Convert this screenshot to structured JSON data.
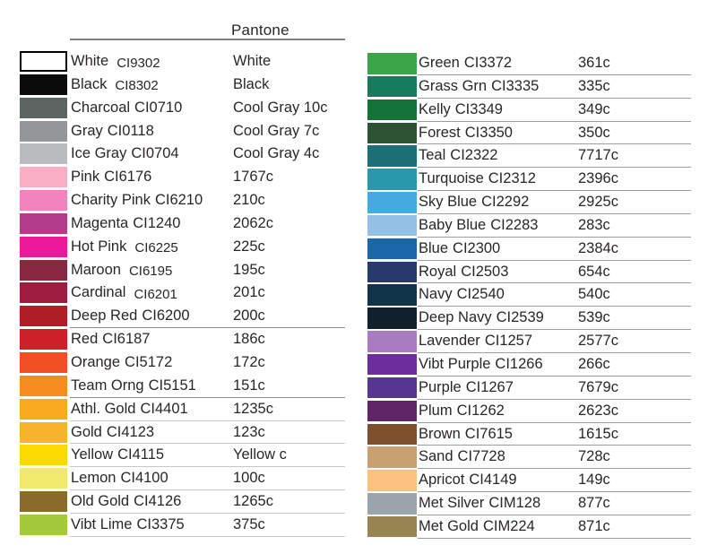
{
  "header": {
    "pantone_label": "Pantone"
  },
  "chart_data": {
    "type": "table",
    "title": "Pantone",
    "columns": [
      "swatch_color",
      "color_name",
      "ink_code",
      "pantone_value"
    ],
    "left_rows": [
      {
        "name": "White",
        "code": "CI9302",
        "pantone": "White",
        "color": "#ffffff",
        "swatch_border": true,
        "offset_code": true,
        "underline": null
      },
      {
        "name": "Black",
        "code": "CI8302",
        "pantone": "Black",
        "color": "#0b0b0b",
        "swatch_border": false,
        "offset_code": true,
        "underline": null
      },
      {
        "name": "Charcoal",
        "code": "CI0710",
        "pantone": "Cool Gray 10c",
        "color": "#5e6461",
        "swatch_border": false,
        "offset_code": false,
        "underline": null
      },
      {
        "name": "Gray",
        "code": "CI0118",
        "pantone": "Cool Gray 7c",
        "color": "#949698",
        "swatch_border": false,
        "offset_code": false,
        "underline": null
      },
      {
        "name": "Ice Gray",
        "code": "CI0704",
        "pantone": "Cool Gray 4c",
        "color": "#b9bbbd",
        "swatch_border": false,
        "offset_code": false,
        "underline": null
      },
      {
        "name": "Pink",
        "code": "CI6176",
        "pantone": "1767c",
        "color": "#f9aec6",
        "swatch_border": false,
        "offset_code": false,
        "underline": null
      },
      {
        "name": "Charity Pink",
        "code": "CI6210",
        "pantone": "210c",
        "color": "#f283bd",
        "swatch_border": false,
        "offset_code": false,
        "underline": null
      },
      {
        "name": "Magenta",
        "code": "CI1240",
        "pantone": "2062c",
        "color": "#b43c8d",
        "swatch_border": false,
        "offset_code": false,
        "underline": null
      },
      {
        "name": "Hot Pink",
        "code": "CI6225",
        "pantone": "225c",
        "color": "#ec1a9b",
        "swatch_border": false,
        "offset_code": true,
        "underline": null
      },
      {
        "name": "Maroon",
        "code": "CI6195",
        "pantone": "195c",
        "color": "#88293f",
        "swatch_border": false,
        "offset_code": true,
        "underline": null
      },
      {
        "name": "Cardinal",
        "code": "CI6201",
        "pantone": "201c",
        "color": "#9d1d3e",
        "swatch_border": false,
        "offset_code": true,
        "underline": null
      },
      {
        "name": "Deep Red",
        "code": "CI6200",
        "pantone": "200c",
        "color": "#b01f26",
        "swatch_border": false,
        "offset_code": false,
        "underline": "dark"
      },
      {
        "name": "Red",
        "code": "CI6187",
        "pantone": "186c",
        "color": "#cd2028",
        "swatch_border": false,
        "offset_code": false,
        "underline": null
      },
      {
        "name": "Orange",
        "code": "CI5172",
        "pantone": "172c",
        "color": "#f04e23",
        "swatch_border": false,
        "offset_code": false,
        "underline": null
      },
      {
        "name": "Team Orng",
        "code": "CI5151",
        "pantone": "151c",
        "color": "#f68b1f",
        "swatch_border": false,
        "offset_code": false,
        "underline": "dark"
      },
      {
        "name": "Athl. Gold",
        "code": "CI4401",
        "pantone": "1235c",
        "color": "#f8a91d",
        "swatch_border": false,
        "offset_code": false,
        "underline": "light"
      },
      {
        "name": "Gold",
        "code": "CI4123",
        "pantone": "123c",
        "color": "#f7b32b",
        "swatch_border": false,
        "offset_code": false,
        "underline": "light"
      },
      {
        "name": "Yellow",
        "code": "CI4115",
        "pantone": "Yellow c",
        "color": "#fcd900",
        "swatch_border": false,
        "offset_code": false,
        "underline": "light"
      },
      {
        "name": "Lemon",
        "code": "CI4100",
        "pantone": "100c",
        "color": "#f1e96d",
        "swatch_border": false,
        "offset_code": false,
        "underline": "light"
      },
      {
        "name": "Old Gold",
        "code": "CI4126",
        "pantone": "1265c",
        "color": "#8a6b29",
        "swatch_border": false,
        "offset_code": false,
        "underline": "light"
      },
      {
        "name": "Vibt Lime",
        "code": "CI3375",
        "pantone": "375c",
        "color": "#a4c93a",
        "swatch_border": false,
        "offset_code": false,
        "underline": "light"
      }
    ],
    "right_rows": [
      {
        "name": "Green",
        "code": "CI3372",
        "pantone": "361c",
        "color": "#3ba548",
        "swatch_border": false,
        "offset_code": false,
        "underline": "mid"
      },
      {
        "name": "Grass Grn",
        "code": "CI3335",
        "pantone": "335c",
        "color": "#157d5e",
        "swatch_border": false,
        "offset_code": false,
        "underline": "mid"
      },
      {
        "name": "Kelly",
        "code": "CI3349",
        "pantone": "349c",
        "color": "#15733a",
        "swatch_border": false,
        "offset_code": false,
        "underline": "mid"
      },
      {
        "name": "Forest",
        "code": "CI3350",
        "pantone": "350c",
        "color": "#2d5233",
        "swatch_border": false,
        "offset_code": false,
        "underline": "mid"
      },
      {
        "name": "Teal",
        "code": "CI2322",
        "pantone": "7717c",
        "color": "#1b7076",
        "swatch_border": false,
        "offset_code": false,
        "underline": "mid"
      },
      {
        "name": "Turquoise",
        "code": "CI2312",
        "pantone": "2396c",
        "color": "#2898ab",
        "swatch_border": false,
        "offset_code": false,
        "underline": "mid"
      },
      {
        "name": "Sky Blue",
        "code": "CI2292",
        "pantone": "2925c",
        "color": "#43abe0",
        "swatch_border": false,
        "offset_code": false,
        "underline": "mid"
      },
      {
        "name": "Baby Blue",
        "code": "CI2283",
        "pantone": "283c",
        "color": "#94c0e6",
        "swatch_border": false,
        "offset_code": false,
        "underline": "mid"
      },
      {
        "name": "Blue",
        "code": "CI2300",
        "pantone": "2384c",
        "color": "#1c67ac",
        "swatch_border": false,
        "offset_code": false,
        "underline": "mid"
      },
      {
        "name": "Royal",
        "code": "CI2503",
        "pantone": "654c",
        "color": "#28396d",
        "swatch_border": false,
        "offset_code": false,
        "underline": "mid"
      },
      {
        "name": "Navy",
        "code": "CI2540",
        "pantone": "540c",
        "color": "#123449",
        "swatch_border": false,
        "offset_code": false,
        "underline": "mid"
      },
      {
        "name": "Deep Navy",
        "code": "CI2539",
        "pantone": "539c",
        "color": "#11202d",
        "swatch_border": false,
        "offset_code": false,
        "underline": "mid"
      },
      {
        "name": "Lavender",
        "code": "CI1257",
        "pantone": "2577c",
        "color": "#a97cc2",
        "swatch_border": false,
        "offset_code": false,
        "underline": "mid"
      },
      {
        "name": "Vibt Purple",
        "code": "CI1266",
        "pantone": "266c",
        "color": "#6c2e9c",
        "swatch_border": false,
        "offset_code": false,
        "underline": "mid"
      },
      {
        "name": "Purple",
        "code": "CI1267",
        "pantone": "7679c",
        "color": "#563593",
        "swatch_border": false,
        "offset_code": false,
        "underline": "mid"
      },
      {
        "name": "Plum",
        "code": "CI1262",
        "pantone": "2623c",
        "color": "#5f2566",
        "swatch_border": false,
        "offset_code": false,
        "underline": "mid"
      },
      {
        "name": "Brown",
        "code": "CI7615",
        "pantone": "1615c",
        "color": "#7c502d",
        "swatch_border": false,
        "offset_code": false,
        "underline": "mid"
      },
      {
        "name": "Sand",
        "code": "CI7728",
        "pantone": "728c",
        "color": "#c9a06f",
        "swatch_border": false,
        "offset_code": false,
        "underline": "mid"
      },
      {
        "name": "Apricot",
        "code": "CI4149",
        "pantone": "149c",
        "color": "#fbc181",
        "swatch_border": false,
        "offset_code": false,
        "underline": "mid"
      },
      {
        "name": "Met Silver",
        "code": "CIM128",
        "pantone": "877c",
        "color": "#9ba3ad",
        "swatch_border": false,
        "offset_code": false,
        "underline": "mid"
      },
      {
        "name": "Met Gold",
        "code": "CIM224",
        "pantone": "871c",
        "color": "#968551",
        "swatch_border": false,
        "offset_code": false,
        "underline": "mid"
      }
    ]
  }
}
